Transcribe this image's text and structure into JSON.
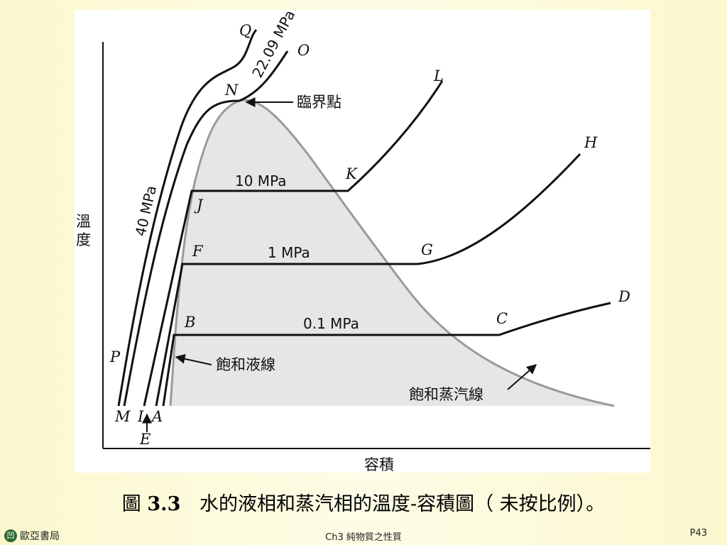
{
  "diagram": {
    "axis_labels": {
      "y": "溫度",
      "x": "容積"
    },
    "pressures": {
      "supercritical": "40 MPa",
      "critical": "22.09 MPa",
      "high": "10 MPa",
      "mid": "1 MPa",
      "low": "0.1 MPa"
    },
    "annotations": {
      "critical_point": "臨界點",
      "saturated_liquid_line": "飽和液線",
      "saturated_vapor_line": "飽和蒸汽線"
    },
    "points": {
      "Q": "Q",
      "O": "O",
      "N": "N",
      "L": "L",
      "K": "K",
      "H": "H",
      "J": "J",
      "F": "F",
      "G": "G",
      "B": "B",
      "C": "C",
      "D": "D",
      "P": "P",
      "M": "M",
      "I": "I",
      "A": "A",
      "E": "E"
    },
    "colors": {
      "dome_fill": "#e6e6e6",
      "dome_line": "#9a9a9a",
      "curve": "#111111"
    }
  },
  "caption": {
    "prefix": "圖",
    "number": "3.3",
    "text": "水的液相和蒸汽相的溫度-容積圖（ 未按比例）。"
  },
  "footer": {
    "logo_glyph": "凹",
    "publisher": "歐亞書局",
    "chapter": "Ch3 純物質之性質",
    "page": "P43"
  }
}
